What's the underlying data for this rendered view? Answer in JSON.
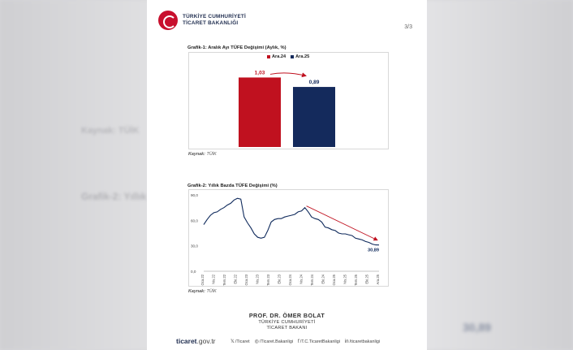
{
  "header": {
    "brand_line1": "TÜRKİYE CUMHURİYETİ",
    "brand_line2": "TİCARET BAKANLIĞI",
    "page_number": "3/3"
  },
  "chart1": {
    "title": "Grafik-1: Aralık Ayı TÜFE Değişimi (Aylık, %)",
    "source_label": "Kaynak:",
    "source_value": "TÜİK"
  },
  "chart2": {
    "title": "Grafik-2: Yıllık Bazda TÜFE Değişimi (%)",
    "source_label": "Kaynak:",
    "source_value": "TÜİK"
  },
  "signature": {
    "name": "PROF. DR. ÖMER BOLAT",
    "line1": "TÜRKİYE CUMHURİYETİ",
    "line2": "TİCARET BAKANI"
  },
  "footer": {
    "brand_bold": "ticaret",
    "brand_rest": ".gov.tr",
    "socials": [
      {
        "icon": "x-icon",
        "glyph": "𝕏",
        "label": "/Ticaret"
      },
      {
        "icon": "instagram-icon",
        "glyph": "◎",
        "label": "/Ticaret.Bakanligi"
      },
      {
        "icon": "facebook-icon",
        "glyph": "f",
        "label": "/T.C.TicaretBakanligi"
      },
      {
        "icon": "linkedin-icon",
        "glyph": "in",
        "label": "/ticaretbakanligi"
      }
    ]
  },
  "background": {
    "ghost_left_1": "Kaynak: TÜİK",
    "ghost_left_2": "Grafik-2: Yıllık",
    "ghost_right": "30,89"
  },
  "chart_data": [
    {
      "type": "bar",
      "categories": [
        "Ara.24",
        "Ara.25"
      ],
      "values": [
        1.03,
        0.89
      ],
      "value_labels": [
        "1,03",
        "0,89"
      ],
      "colors": [
        "#c0111f",
        "#142a5c"
      ],
      "legend": [
        "Ara.24",
        "Ara.25"
      ],
      "legend_position": "top",
      "annotation": "red arrow from Ara.24 to Ara.25",
      "ylim": [
        0,
        1.3
      ],
      "grid": false
    },
    {
      "type": "line",
      "series": [
        {
          "color": "#0f2a5c",
          "values": [
            55,
            61,
            66,
            69,
            70,
            73,
            75,
            78,
            80,
            84,
            86,
            85,
            64,
            57,
            51,
            44,
            40,
            39,
            40,
            48,
            58,
            61,
            62,
            62,
            64,
            65,
            66,
            67,
            70,
            71,
            75,
            70,
            64,
            62,
            61,
            58,
            52,
            51,
            49,
            48,
            45,
            44,
            44,
            43,
            42,
            39,
            38,
            37,
            35,
            34,
            32,
            31,
            30.89
          ]
        }
      ],
      "x_tick_labels": [
        "Oca.22",
        "Nis.22",
        "Tem.22",
        "Eki.22",
        "Oca.23",
        "Nis.23",
        "Tem.23",
        "Eki.23",
        "Oca.24",
        "Nis.24",
        "Tem.24",
        "Eki.24",
        "Oca.25",
        "Nis.25",
        "Tem.25",
        "Eki.25",
        "Ara.25"
      ],
      "y_ticks": [
        "0,0",
        "30,0",
        "60,0",
        "90,0"
      ],
      "ylim": [
        0,
        90
      ],
      "end_label": "30,89",
      "annotation": "red downward trend arrow from Mar.24 to Ara.25",
      "grid": false
    }
  ]
}
